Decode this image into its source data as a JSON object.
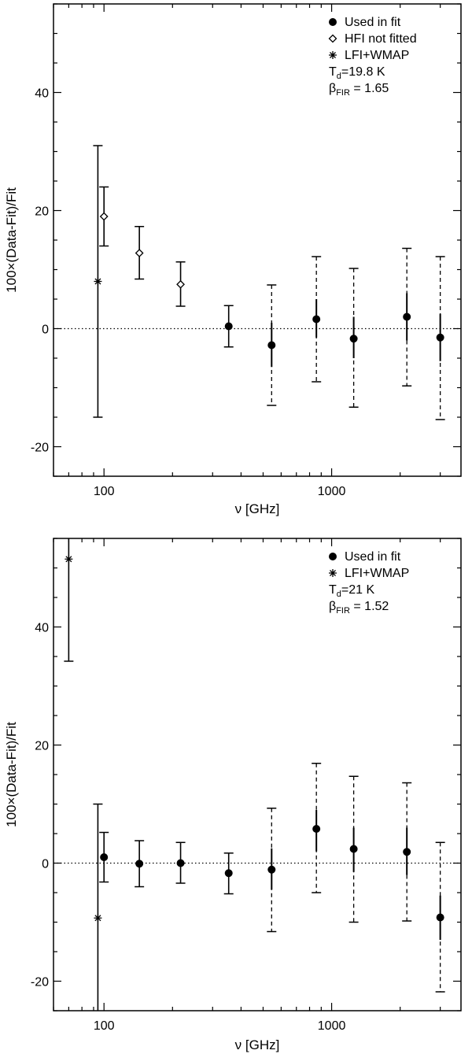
{
  "chart_data": [
    {
      "type": "scatter",
      "xscale": "log",
      "xlim": [
        60,
        3700
      ],
      "ylim": [
        -25,
        55
      ],
      "xlabel_symbol": "ν",
      "xlabel_unit": "[GHz]",
      "ylabel": "100×(Data-Fit)/Fit",
      "x_ticks": [
        100,
        1000
      ],
      "x_tick_labels": [
        "100",
        "1000"
      ],
      "y_ticks": [
        -20,
        0,
        20,
        40
      ],
      "y_tick_labels": [
        "-20",
        "0",
        "20",
        "40"
      ],
      "zero_line": "dotted",
      "legend_position": "top-right",
      "legend": [
        {
          "marker": "filled-circle",
          "label": "Used in fit"
        },
        {
          "marker": "open-diamond",
          "label": "HFI not fitted"
        },
        {
          "marker": "asterisk",
          "label": "LFI+WMAP"
        }
      ],
      "params": [
        {
          "symbol": "T",
          "sub": "d",
          "text": "=19.8 K"
        },
        {
          "symbol": "β",
          "sub": "FIR",
          "text": " = 1.65"
        }
      ],
      "series": [
        {
          "marker": "asterisk",
          "points": [
            {
              "x": 94,
              "y": 8,
              "err_lo": -15,
              "err_hi": 31,
              "solid_lo": -15,
              "solid_hi": 31,
              "dashed": false
            }
          ]
        },
        {
          "marker": "open-diamond",
          "points": [
            {
              "x": 100,
              "y": 19,
              "err_lo": 14,
              "err_hi": 24,
              "solid_lo": 14,
              "solid_hi": 24,
              "dashed": false
            },
            {
              "x": 143,
              "y": 12.8,
              "err_lo": 8.4,
              "err_hi": 17.3,
              "solid_lo": 8.4,
              "solid_hi": 17.3,
              "dashed": false
            },
            {
              "x": 217,
              "y": 7.5,
              "err_lo": 3.8,
              "err_hi": 11.3,
              "solid_lo": 3.8,
              "solid_hi": 11.3,
              "dashed": false
            }
          ]
        },
        {
          "marker": "filled-circle",
          "points": [
            {
              "x": 353,
              "y": 0.4,
              "err_lo": -3.1,
              "err_hi": 3.9,
              "solid_lo": -3.1,
              "solid_hi": 3.9,
              "dashed": false
            },
            {
              "x": 545,
              "y": -2.8,
              "err_lo": -13,
              "err_hi": 7.4,
              "solid_lo": -6.5,
              "solid_hi": 1,
              "dashed": true
            },
            {
              "x": 857,
              "y": 1.6,
              "err_lo": -9,
              "err_hi": 12.2,
              "solid_lo": -1.5,
              "solid_hi": 5,
              "dashed": true
            },
            {
              "x": 1250,
              "y": -1.7,
              "err_lo": -13.3,
              "err_hi": 10.2,
              "solid_lo": -5,
              "solid_hi": 2,
              "dashed": true
            },
            {
              "x": 2140,
              "y": 2,
              "err_lo": -9.7,
              "err_hi": 13.6,
              "solid_lo": -2,
              "solid_hi": 6,
              "dashed": true
            },
            {
              "x": 3000,
              "y": -1.5,
              "err_lo": -15.4,
              "err_hi": 12.2,
              "solid_lo": -5.5,
              "solid_hi": 2.5,
              "dashed": true
            }
          ]
        }
      ]
    },
    {
      "type": "scatter",
      "xscale": "log",
      "xlim": [
        60,
        3700
      ],
      "ylim": [
        -25,
        55
      ],
      "xlabel_symbol": "ν",
      "xlabel_unit": "[GHz]",
      "ylabel": "100×(Data-Fit)/Fit",
      "x_ticks": [
        100,
        1000
      ],
      "x_tick_labels": [
        "100",
        "1000"
      ],
      "y_ticks": [
        -20,
        0,
        20,
        40
      ],
      "y_tick_labels": [
        "-20",
        "0",
        "20",
        "40"
      ],
      "zero_line": "dotted",
      "legend_position": "top-right",
      "legend": [
        {
          "marker": "filled-circle",
          "label": "Used in fit"
        },
        {
          "marker": "asterisk",
          "label": "LFI+WMAP"
        }
      ],
      "params": [
        {
          "symbol": "T",
          "sub": "d",
          "text": "=21 K"
        },
        {
          "symbol": "β",
          "sub": "FIR",
          "text": " = 1.52"
        }
      ],
      "series": [
        {
          "marker": "asterisk",
          "points": [
            {
              "x": 70,
              "y": 51.5,
              "err_lo": 34.2,
              "err_hi": 55,
              "solid_lo": 34.2,
              "solid_hi": 55,
              "dashed": false
            },
            {
              "x": 94,
              "y": -9.3,
              "err_lo": -25,
              "err_hi": 10,
              "solid_lo": -25,
              "solid_hi": 10,
              "dashed": false
            }
          ]
        },
        {
          "marker": "filled-circle",
          "points": [
            {
              "x": 100,
              "y": 1,
              "err_lo": -3.2,
              "err_hi": 5.2,
              "solid_lo": -3.2,
              "solid_hi": 5.2,
              "dashed": false
            },
            {
              "x": 143,
              "y": -0.1,
              "err_lo": -4,
              "err_hi": 3.8,
              "solid_lo": -4,
              "solid_hi": 3.8,
              "dashed": false
            },
            {
              "x": 217,
              "y": 0,
              "err_lo": -3.4,
              "err_hi": 3.5,
              "solid_lo": -3.4,
              "solid_hi": 3.5,
              "dashed": false
            },
            {
              "x": 353,
              "y": -1.7,
              "err_lo": -5.2,
              "err_hi": 1.7,
              "solid_lo": -5.2,
              "solid_hi": 1.7,
              "dashed": false
            },
            {
              "x": 545,
              "y": -1.1,
              "err_lo": -11.6,
              "err_hi": 9.3,
              "solid_lo": -4.5,
              "solid_hi": 2.5,
              "dashed": true
            },
            {
              "x": 857,
              "y": 5.8,
              "err_lo": -5,
              "err_hi": 16.9,
              "solid_lo": 2,
              "solid_hi": 9,
              "dashed": true
            },
            {
              "x": 1250,
              "y": 2.4,
              "err_lo": -10,
              "err_hi": 14.7,
              "solid_lo": -1.5,
              "solid_hi": 6,
              "dashed": true
            },
            {
              "x": 2140,
              "y": 1.9,
              "err_lo": -9.8,
              "err_hi": 13.6,
              "solid_lo": -2,
              "solid_hi": 6,
              "dashed": true
            },
            {
              "x": 3000,
              "y": -9.2,
              "err_lo": -21.8,
              "err_hi": 3.5,
              "solid_lo": -13,
              "solid_hi": -5.5,
              "dashed": true
            }
          ]
        }
      ]
    }
  ]
}
